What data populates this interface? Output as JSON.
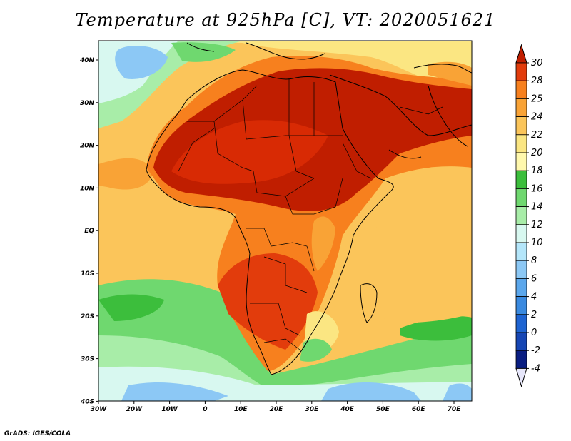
{
  "title": "Temperature at 925hPa [C], VT: 2020051621",
  "credit": "GrADS: IGES/COLA",
  "map": {
    "lat_labels": [
      "40N",
      "30N",
      "20N",
      "10N",
      "EQ",
      "10S",
      "20S",
      "30S",
      "40S"
    ],
    "lon_labels": [
      "30W",
      "20W",
      "10W",
      "0",
      "10E",
      "20E",
      "30E",
      "40E",
      "50E",
      "60E",
      "70E"
    ],
    "lon_range": [
      -30,
      75
    ],
    "lat_range": [
      -40,
      45
    ]
  },
  "colorbar": {
    "labels": [
      "30",
      "28",
      "25",
      "24",
      "22",
      "20",
      "18",
      "16",
      "14",
      "12",
      "10",
      "8",
      "6",
      "4",
      "2",
      "0",
      "-2",
      "-4"
    ],
    "colors": [
      "#c01e00",
      "#e23c0c",
      "#f7801e",
      "#f9a336",
      "#fbc55a",
      "#fbe682",
      "#fff8ad",
      "#3cbe3c",
      "#6fd86f",
      "#a8eda8",
      "#d8f8f0",
      "#b4e6fa",
      "#8cc8f5",
      "#5ba7ec",
      "#3a8ae0",
      "#1e64d2",
      "#1646b4",
      "#0a1e82",
      "#e6e6fa"
    ]
  }
}
